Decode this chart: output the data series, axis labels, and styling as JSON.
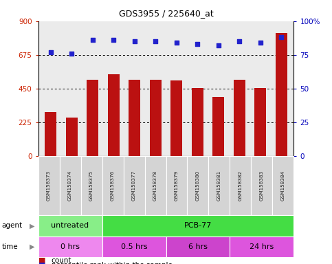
{
  "title": "GDS3955 / 225640_at",
  "samples": [
    "GSM158373",
    "GSM158374",
    "GSM158375",
    "GSM158376",
    "GSM158377",
    "GSM158378",
    "GSM158379",
    "GSM158380",
    "GSM158381",
    "GSM158382",
    "GSM158383",
    "GSM158384"
  ],
  "counts": [
    290,
    255,
    510,
    545,
    510,
    510,
    505,
    455,
    395,
    510,
    455,
    820
  ],
  "percentiles": [
    77,
    76,
    86,
    86,
    85,
    85,
    84,
    83,
    82,
    85,
    84,
    88
  ],
  "ylim_left": [
    0,
    900
  ],
  "ylim_right": [
    0,
    100
  ],
  "yticks_left": [
    0,
    225,
    450,
    675,
    900
  ],
  "yticks_right": [
    0,
    25,
    50,
    75,
    100
  ],
  "bar_color": "#bb1111",
  "dot_color": "#2222cc",
  "agent_groups": [
    {
      "label": "untreated",
      "start": 0,
      "end": 3,
      "color": "#88ee88"
    },
    {
      "label": "PCB-77",
      "start": 3,
      "end": 12,
      "color": "#44dd44"
    }
  ],
  "time_groups": [
    {
      "label": "0 hrs",
      "start": 0,
      "end": 3,
      "color": "#ee88ee"
    },
    {
      "label": "0.5 hrs",
      "start": 3,
      "end": 6,
      "color": "#dd55dd"
    },
    {
      "label": "6 hrs",
      "start": 6,
      "end": 9,
      "color": "#cc44cc"
    },
    {
      "label": "24 hrs",
      "start": 9,
      "end": 12,
      "color": "#dd55dd"
    }
  ],
  "ylabel_left_color": "#cc2200",
  "ylabel_right_color": "#0000bb",
  "plot_bg_color": "#ebebeb",
  "label_box_color": "#d4d4d4"
}
